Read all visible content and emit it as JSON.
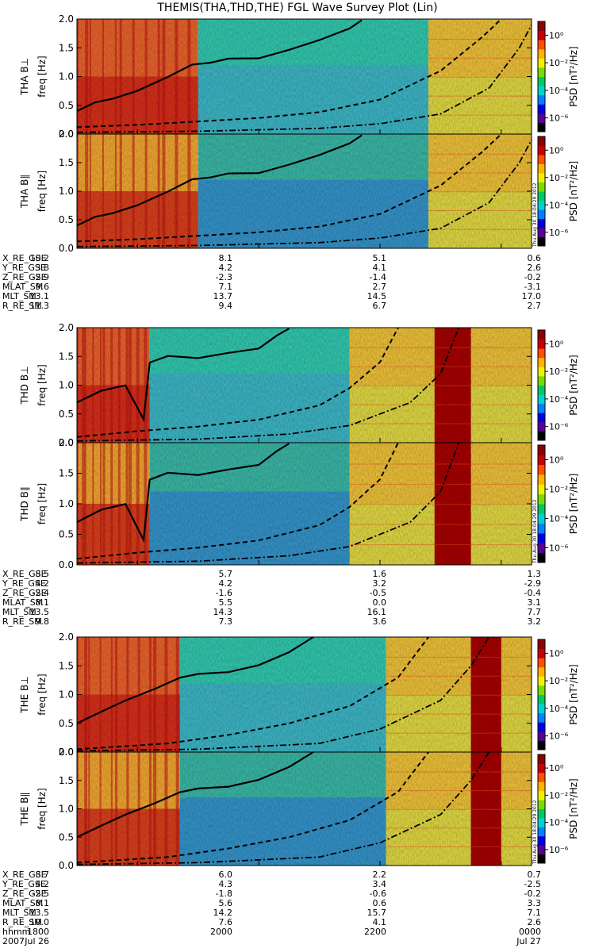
{
  "title": "THEMIS(THA,THD,THE) FGL Wave Survey Plot (Lin)",
  "ylabel_freq": "freq [Hz]",
  "colorbar": {
    "label": "PSD [nT²/Hz]",
    "ticks": [
      "10⁰",
      "10⁻²",
      "10⁻⁴",
      "10⁻⁶"
    ],
    "tick_values": [
      1,
      0.01,
      0.0001,
      1e-06
    ],
    "colors": [
      "#000000",
      "#5a0096",
      "#0000e6",
      "#0080ff",
      "#00d2d2",
      "#00c864",
      "#78dc00",
      "#f0f000",
      "#ffb400",
      "#ff5000",
      "#c80000",
      "#8c0000"
    ]
  },
  "timestamp": "Thu Aug 30 18:04:29 2012",
  "time_axis": {
    "row_label_1": "hhmm",
    "row_label_2": "2007",
    "ticks": [
      "1800",
      "2000",
      "2200",
      "0000"
    ],
    "dates": [
      "Jul 26",
      "",
      "",
      "Jul 27"
    ]
  },
  "chart_data": {
    "type": "heatmap",
    "y_range_hz": [
      0.0,
      2.0
    ],
    "y_ticks": [
      "0.0",
      "0.5",
      "1.0",
      "1.5",
      "2.0"
    ],
    "x_range_ut": [
      "2007-07-26 17:00",
      "2007-07-27 00:30"
    ],
    "probes": [
      {
        "panels": [
          {
            "label": "THA B⊥"
          },
          {
            "label": "THA B∥"
          }
        ],
        "ephemeris": {
          "X_RE_GSE": [
            "10.2",
            "8.1",
            "5.1",
            "0.6"
          ],
          "Y_RE_GSE": [
            "3.8",
            "4.2",
            "4.1",
            "2.6"
          ],
          "Z_RE_GSE": [
            "-2.9",
            "-2.3",
            "-1.4",
            "-0.2"
          ],
          "MLAT_SM": [
            "9.6",
            "7.1",
            "2.7",
            "-3.1"
          ],
          "MLT_SM": [
            "13.1",
            "13.7",
            "14.5",
            "17.0"
          ],
          "R_RE_SM": [
            "11.3",
            "9.4",
            "6.7",
            "2.7"
          ]
        }
      },
      {
        "panels": [
          {
            "label": "THD B⊥"
          },
          {
            "label": "THD B∥"
          }
        ],
        "ephemeris": {
          "X_RE_GSE": [
            "8.5",
            "5.7",
            "1.6",
            "1.3"
          ],
          "Y_RE_GSE": [
            "4.2",
            "4.2",
            "3.2",
            "-2.9"
          ],
          "Z_RE_GSE": [
            "-2.4",
            "-1.6",
            "-0.5",
            "-0.4"
          ],
          "MLAT_SM": [
            "8.1",
            "5.5",
            "0.0",
            "3.1"
          ],
          "MLT_SM": [
            "13.5",
            "14.3",
            "16.1",
            "7.7"
          ],
          "R_RE_SM": [
            "9.8",
            "7.3",
            "3.6",
            "3.2"
          ]
        }
      },
      {
        "panels": [
          {
            "label": "THE B⊥"
          },
          {
            "label": "THE B∥"
          }
        ],
        "ephemeris": {
          "X_RE_GSE": [
            "8.7",
            "6.0",
            "2.2",
            "0.7"
          ],
          "Y_RE_GSE": [
            "4.2",
            "4.3",
            "3.4",
            "-2.5"
          ],
          "Z_RE_GSE": [
            "-2.5",
            "-1.8",
            "-0.6",
            "-0.2"
          ],
          "MLAT_SM": [
            "8.1",
            "5.6",
            "0.6",
            "3.3"
          ],
          "MLT_SM": [
            "13.5",
            "14.2",
            "15.7",
            "7.1"
          ],
          "R_RE_SM": [
            "10.0",
            "7.6",
            "4.1",
            "2.6"
          ]
        }
      }
    ]
  }
}
